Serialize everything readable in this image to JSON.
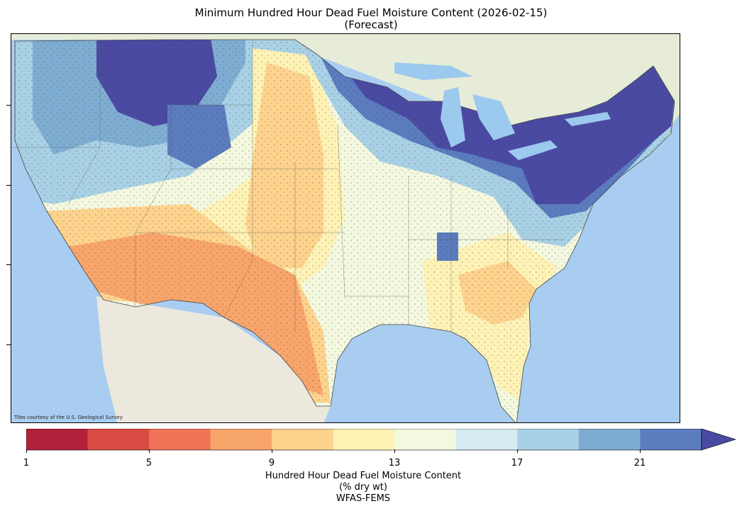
{
  "title_line1": "Minimum Hundred Hour Dead Fuel Moisture Content (2026-02-15)",
  "title_line2": "(Forecast)",
  "credit": "Tiles courtesy of the U.S. Geological Survey",
  "colorbar": {
    "ticks": [
      "1",
      "5",
      "9",
      "13",
      "17",
      "21"
    ],
    "label_line1": "Hundred Hour Dead Fuel Moisture Content",
    "label_line2": "(% dry wt)",
    "label_line3": "WFAS-FEMS",
    "colors": [
      "#b2223d",
      "#d94b43",
      "#ef7458",
      "#f8a56b",
      "#fdd38d",
      "#fef2b5",
      "#f3f8df",
      "#d6ecf3",
      "#a9d1e5",
      "#7fadd2",
      "#5b7cbe",
      "#4b4aa3"
    ]
  },
  "map_colors": {
    "ocean": "#a9cdf0",
    "land_mexico": "#ece8de",
    "land_canada": "#e6ecd8",
    "lakes": "#9cc9ee"
  }
}
